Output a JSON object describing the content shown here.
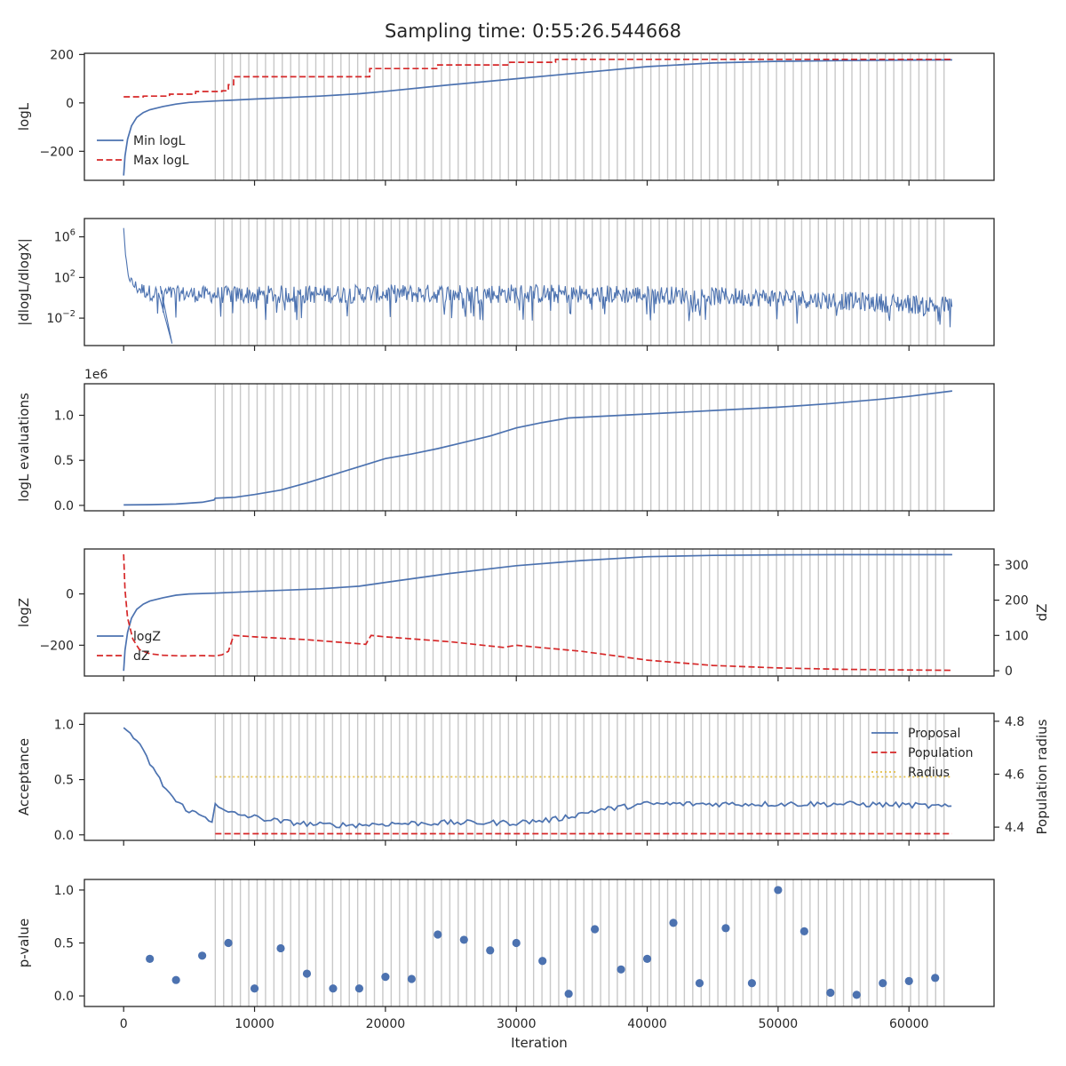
{
  "figure": {
    "title": "Sampling time: 0:55:26.544668"
  },
  "chart_data": [
    {
      "type": "line",
      "ylabel": "logL",
      "xlim": [
        -3000,
        66500
      ],
      "ylim": [
        -320,
        205
      ],
      "yticks": [
        200,
        0,
        -200
      ],
      "ytick_labels": [
        "200",
        "0",
        "−200"
      ],
      "legend": "left",
      "series": [
        {
          "name": "Min logL",
          "color": "#4c72b0",
          "dash": "solid",
          "x": [
            0,
            100,
            300,
            600,
            1000,
            1500,
            2000,
            3000,
            4000,
            5000,
            7000,
            10000,
            15000,
            18000,
            20000,
            25000,
            30000,
            35000,
            40000,
            45000,
            50000,
            55000,
            60000,
            63300
          ],
          "y": [
            -300,
            -220,
            -150,
            -95,
            -60,
            -40,
            -28,
            -15,
            -5,
            2,
            8,
            16,
            28,
            38,
            48,
            75,
            100,
            125,
            150,
            165,
            172,
            175,
            177,
            178
          ]
        },
        {
          "name": "Max logL",
          "color": "#d62728",
          "dash": "dashed",
          "x": [
            0,
            1500,
            1500,
            3500,
            3500,
            5500,
            5500,
            7500,
            7500,
            8000,
            8000,
            8400,
            8400,
            18800,
            18800,
            24000,
            24000,
            29500,
            29500,
            33000,
            33000,
            63300
          ],
          "y": [
            25,
            25,
            28,
            28,
            36,
            36,
            47,
            47,
            50,
            50,
            75,
            75,
            108,
            108,
            142,
            142,
            157,
            157,
            168,
            168,
            180,
            180
          ]
        }
      ]
    },
    {
      "type": "line",
      "ylabel": "|dlogL/dlogX|",
      "ylog": true,
      "xlim": [
        -3000,
        66500
      ],
      "ylim_log10": [
        -4.7,
        7.8
      ],
      "yticks_log10": [
        6,
        2,
        -2
      ],
      "ytick_labels": [
        "10^6",
        "10^2",
        "10^-2"
      ],
      "series": [
        {
          "name": "",
          "color": "#4c72b0",
          "noisy": true,
          "x": [
            0,
            100,
            300,
            600,
            1000,
            2000,
            4000,
            7000,
            10000,
            20000,
            30000,
            40000,
            50000,
            55000,
            60000,
            63300
          ],
          "y_log10_center": [
            7,
            4.5,
            2.5,
            1.5,
            1,
            0.5,
            0.4,
            0.3,
            0.3,
            0.4,
            0.4,
            0.3,
            0,
            -0.3,
            -0.6,
            -0.8
          ],
          "y_log10_low": [
            7,
            3,
            0,
            -1.5,
            -1.8,
            -2.3,
            -2.4,
            -2.4,
            -2.4,
            -2.3,
            -2.3,
            -2.3,
            -2.5,
            -2.7,
            -2.9,
            -3
          ],
          "y_log10_high": [
            7.5,
            5,
            3,
            2.3,
            2,
            1.6,
            1.5,
            1.5,
            1.6,
            1.7,
            1.8,
            1.6,
            1.3,
            1,
            0.8,
            0.6
          ]
        }
      ]
    },
    {
      "type": "line",
      "ylabel": "logL evaluations",
      "offset_label": "1e6",
      "xlim": [
        -3000,
        66500
      ],
      "ylim": [
        -0.06,
        1.35
      ],
      "yticks": [
        1.0,
        0.5,
        0.0
      ],
      "ytick_labels": [
        "1.0",
        "0.5",
        "0.0"
      ],
      "series": [
        {
          "name": "",
          "color": "#4c72b0",
          "x": [
            0,
            2000,
            4000,
            6000,
            6900,
            7000,
            8500,
            10000,
            12000,
            14000,
            16000,
            18000,
            20000,
            22000,
            24000,
            26000,
            28000,
            30000,
            32000,
            34000,
            38000,
            42000,
            46000,
            50000,
            54000,
            58000,
            60000,
            63300
          ],
          "y": [
            0.005,
            0.008,
            0.015,
            0.035,
            0.06,
            0.08,
            0.09,
            0.12,
            0.17,
            0.25,
            0.34,
            0.43,
            0.52,
            0.57,
            0.63,
            0.7,
            0.77,
            0.86,
            0.92,
            0.97,
            1.0,
            1.03,
            1.06,
            1.09,
            1.13,
            1.18,
            1.21,
            1.27
          ]
        }
      ]
    },
    {
      "type": "line",
      "ylabel": "logZ",
      "y2label": "dZ",
      "xlim": [
        -3000,
        66500
      ],
      "ylim": [
        -320,
        175
      ],
      "yticks": [
        0,
        -200
      ],
      "ytick_labels": [
        "0",
        "−200"
      ],
      "y2lim": [
        -15,
        345
      ],
      "y2ticks": [
        300,
        200,
        100,
        0
      ],
      "y2tick_labels": [
        "300",
        "200",
        "100",
        "0"
      ],
      "legend": "left",
      "series": [
        {
          "name": "logZ",
          "color": "#4c72b0",
          "dash": "solid",
          "axis": "left",
          "x": [
            0,
            100,
            300,
            600,
            1000,
            1500,
            2000,
            3000,
            4000,
            5000,
            7000,
            10000,
            15000,
            18000,
            20000,
            25000,
            30000,
            35000,
            40000,
            45000,
            50000,
            55000,
            60000,
            63300
          ],
          "y": [
            -300,
            -220,
            -150,
            -95,
            -60,
            -40,
            -28,
            -15,
            -5,
            0,
            3,
            10,
            20,
            30,
            45,
            80,
            110,
            130,
            145,
            150,
            152,
            153,
            153,
            153
          ]
        },
        {
          "name": "dZ",
          "color": "#d62728",
          "dash": "dashed",
          "axis": "right",
          "x": [
            0,
            100,
            300,
            700,
            1200,
            2000,
            3000,
            4500,
            6000,
            7000,
            7500,
            8000,
            8400,
            10000,
            14000,
            18500,
            18900,
            20000,
            25000,
            29000,
            30000,
            35000,
            40000,
            45000,
            50000,
            55000,
            60000,
            63300
          ],
          "y": [
            330,
            230,
            150,
            90,
            60,
            48,
            44,
            42,
            43,
            42,
            45,
            55,
            100,
            96,
            88,
            75,
            100,
            96,
            82,
            66,
            72,
            55,
            30,
            15,
            8,
            4,
            2,
            1
          ]
        }
      ]
    },
    {
      "type": "line",
      "ylabel": "Acceptance",
      "y2label": "Population radius",
      "xlim": [
        -3000,
        66500
      ],
      "ylim": [
        -0.05,
        1.1
      ],
      "yticks": [
        1.0,
        0.5,
        0.0
      ],
      "ytick_labels": [
        "1.0",
        "0.5",
        "0.0"
      ],
      "y2lim": [
        4.35,
        4.83
      ],
      "y2ticks": [
        4.8,
        4.6,
        4.4
      ],
      "y2tick_labels": [
        "4.8",
        "4.6",
        "4.4"
      ],
      "legend": "top-right",
      "series": [
        {
          "name": "Proposal",
          "color": "#4c72b0",
          "dash": "solid",
          "axis": "left",
          "jitter": 0.025,
          "x": [
            0,
            500,
            1000,
            1500,
            2000,
            2500,
            3000,
            3500,
            4000,
            5000,
            6000,
            6900,
            7000,
            7500,
            8000,
            10000,
            12000,
            15000,
            18000,
            20000,
            25000,
            30000,
            33000,
            36000,
            40000,
            45000,
            50000,
            55000,
            60000,
            63300
          ],
          "y": [
            0.97,
            0.92,
            0.85,
            0.75,
            0.65,
            0.55,
            0.45,
            0.38,
            0.3,
            0.22,
            0.17,
            0.12,
            0.3,
            0.22,
            0.2,
            0.16,
            0.12,
            0.09,
            0.09,
            0.1,
            0.11,
            0.11,
            0.14,
            0.22,
            0.28,
            0.28,
            0.28,
            0.28,
            0.27,
            0.25
          ]
        },
        {
          "name": "Population",
          "color": "#d62728",
          "dash": "dashed",
          "axis": "left",
          "x": [
            7000,
            63300
          ],
          "y": [
            0.01,
            0.01
          ]
        },
        {
          "name": "Radius",
          "color": "#e5c04a",
          "dash": "dotted",
          "axis": "right",
          "x": [
            7000,
            63300
          ],
          "y": [
            4.59,
            4.59
          ]
        }
      ]
    },
    {
      "type": "scatter",
      "ylabel": "p-value",
      "xlabel": "Iteration",
      "xlim": [
        -3000,
        66500
      ],
      "ylim": [
        -0.1,
        1.1
      ],
      "yticks": [
        1.0,
        0.5,
        0.0
      ],
      "ytick_labels": [
        "1.0",
        "0.5",
        "0.0"
      ],
      "xticks": [
        0,
        10000,
        20000,
        30000,
        40000,
        50000,
        60000
      ],
      "xtick_labels": [
        "0",
        "10000",
        "20000",
        "30000",
        "40000",
        "50000",
        "60000"
      ],
      "series": [
        {
          "name": "",
          "color": "#4c72b0",
          "x": [
            2000,
            4000,
            6000,
            8000,
            10000,
            12000,
            14000,
            16000,
            18000,
            20000,
            22000,
            24000,
            26000,
            28000,
            30000,
            32000,
            34000,
            36000,
            38000,
            40000,
            42000,
            44000,
            46000,
            48000,
            50000,
            52000,
            54000,
            56000,
            58000,
            60000,
            62000
          ],
          "y": [
            0.35,
            0.15,
            0.38,
            0.5,
            0.07,
            0.45,
            0.21,
            0.07,
            0.07,
            0.18,
            0.16,
            0.58,
            0.53,
            0.43,
            0.5,
            0.33,
            0.02,
            0.63,
            0.25,
            0.35,
            0.69,
            0.12,
            0.64,
            0.12,
            1.0,
            0.61,
            0.03,
            0.01,
            0.12,
            0.14,
            0.17
          ]
        }
      ]
    }
  ]
}
